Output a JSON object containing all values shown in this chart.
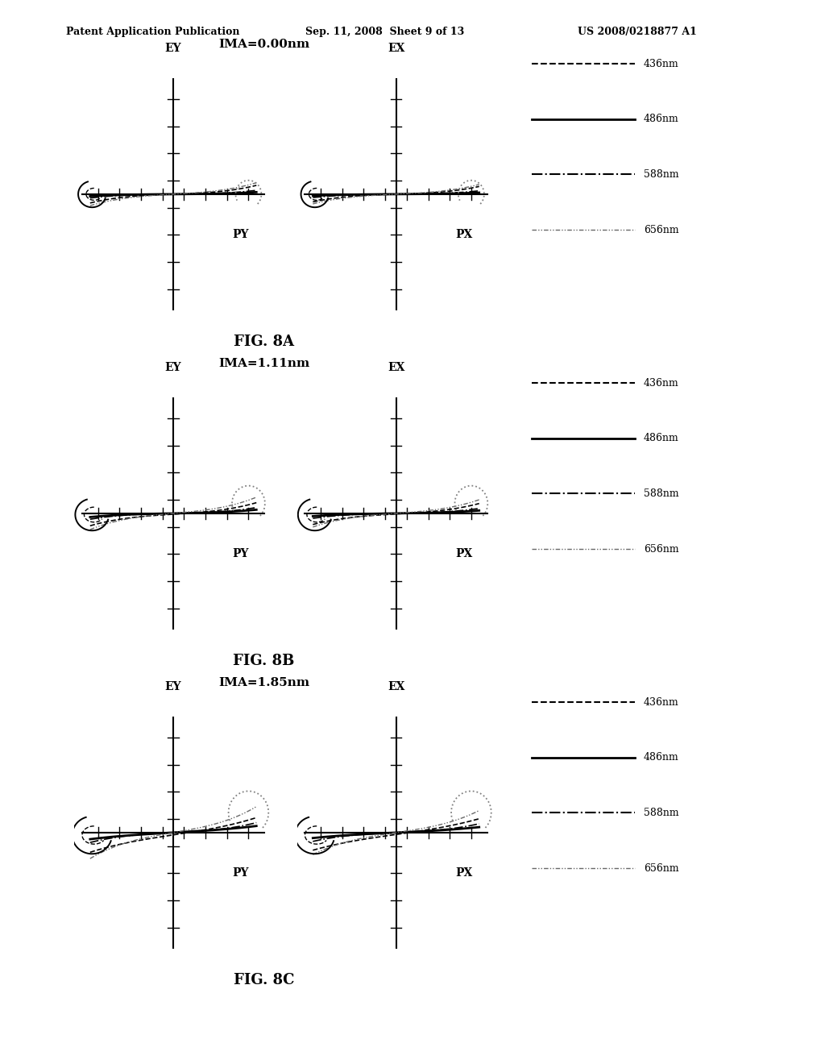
{
  "title_header_left": "Patent Application Publication",
  "title_header_mid": "Sep. 11, 2008  Sheet 9 of 13",
  "title_header_right": "US 2008/0218877 A1",
  "panels": [
    {
      "title": "IMA=0.00nm",
      "fig_label": "FIG. 8A",
      "left_label": "EY",
      "right_label": "EX",
      "bottom_left": "PY",
      "bottom_right": "PX"
    },
    {
      "title": "IMA=1.11nm",
      "fig_label": "FIG. 8B",
      "left_label": "EY",
      "right_label": "EX",
      "bottom_left": "PY",
      "bottom_right": "PX"
    },
    {
      "title": "IMA=1.85nm",
      "fig_label": "FIG. 8C",
      "left_label": "EY",
      "right_label": "EX",
      "bottom_left": "PY",
      "bottom_right": "PX"
    }
  ],
  "legend_entries": [
    {
      "label": "436nm"
    },
    {
      "label": "486nm"
    },
    {
      "label": "588nm"
    },
    {
      "label": "656nm"
    }
  ],
  "background_color": "#ffffff",
  "header_fontsize": 9,
  "panel_title_fontsize": 11,
  "fig_label_fontsize": 13,
  "axis_label_fontsize": 10
}
